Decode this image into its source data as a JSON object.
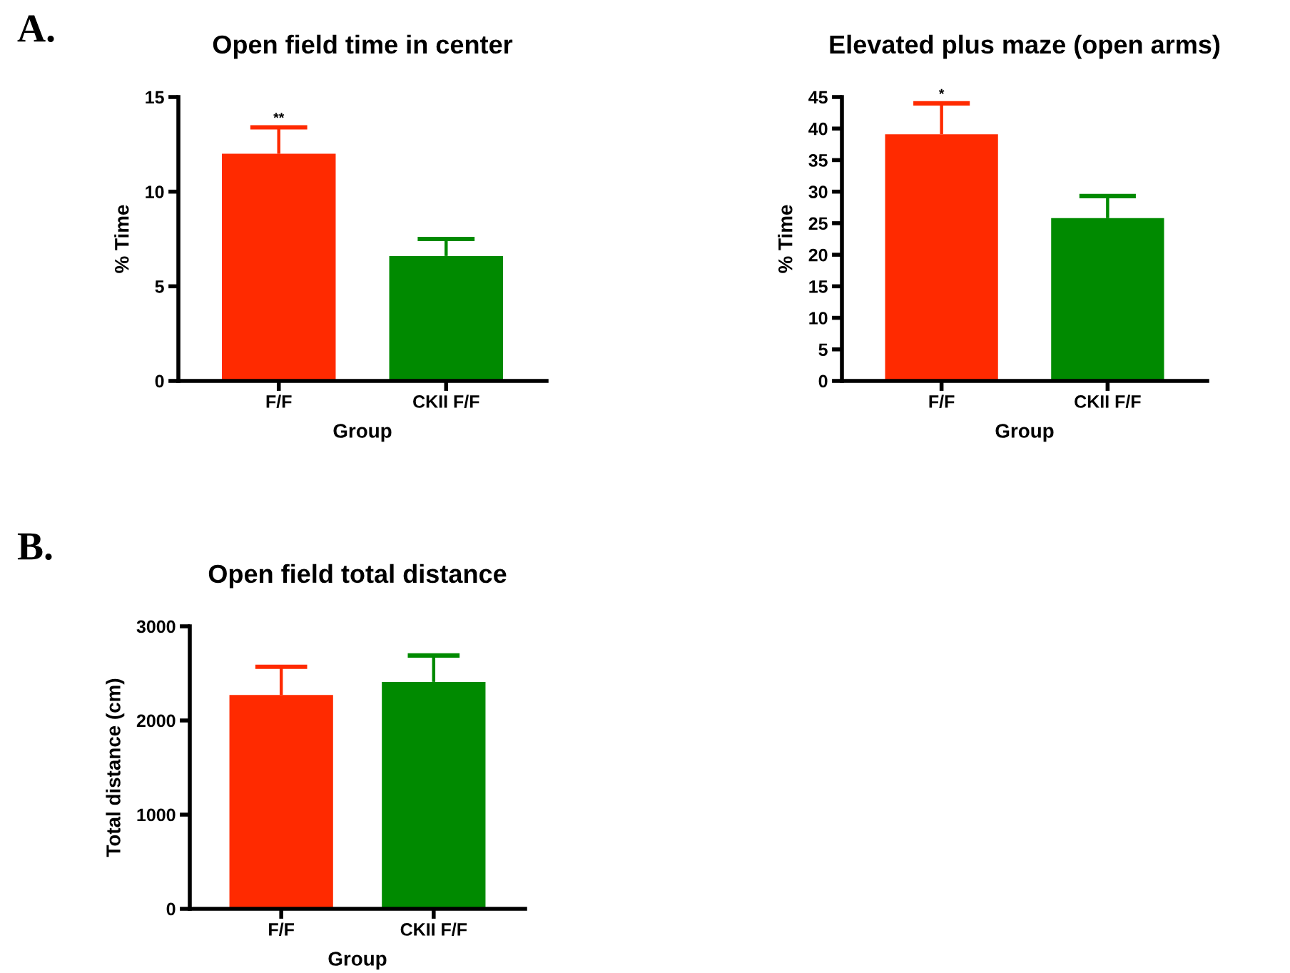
{
  "chart_data": [
    {
      "type": "bar",
      "title": "Open field time in center",
      "xlabel": "Group",
      "ylabel": "% Time",
      "categories": [
        "F/F",
        "CKII F/F"
      ],
      "values": [
        12.0,
        6.6
      ],
      "colors": [
        "#ff2a00",
        "#008a00"
      ],
      "errors": [
        [
          12.0,
          13.4
        ],
        [
          6.6,
          7.5
        ]
      ],
      "ylim": [
        0,
        15
      ],
      "yticks": [
        0,
        5,
        10,
        15
      ],
      "grid": false,
      "legend": false,
      "annotations": [
        "A.",
        "**"
      ]
    },
    {
      "type": "bar",
      "title": "Elevated plus maze (open arms)",
      "xlabel": "Group",
      "ylabel": "% Time",
      "categories": [
        "F/F",
        "CKII F/F"
      ],
      "values": [
        39.1,
        25.8
      ],
      "colors": [
        "#ff2a00",
        "#008a00"
      ],
      "errors": [
        [
          39.1,
          44.0
        ],
        [
          25.8,
          29.3
        ]
      ],
      "ylim": [
        0,
        45
      ],
      "yticks": [
        0,
        5,
        10,
        15,
        20,
        25,
        30,
        35,
        40,
        45
      ],
      "grid": false,
      "legend": false,
      "annotations": [
        "*"
      ]
    },
    {
      "type": "bar",
      "title": "Open field total distance",
      "xlabel": "Group",
      "ylabel": "Total distance (cm)",
      "categories": [
        "F/F",
        "CKII F/F"
      ],
      "values": [
        2270,
        2410
      ],
      "colors": [
        "#ff2a00",
        "#008a00"
      ],
      "errors": [
        [
          2270,
          2570
        ],
        [
          2410,
          2690
        ]
      ],
      "ylim": [
        0,
        3000
      ],
      "yticks": [
        0,
        1000,
        2000,
        3000
      ],
      "grid": false,
      "legend": false,
      "annotations": [
        "B."
      ]
    }
  ]
}
